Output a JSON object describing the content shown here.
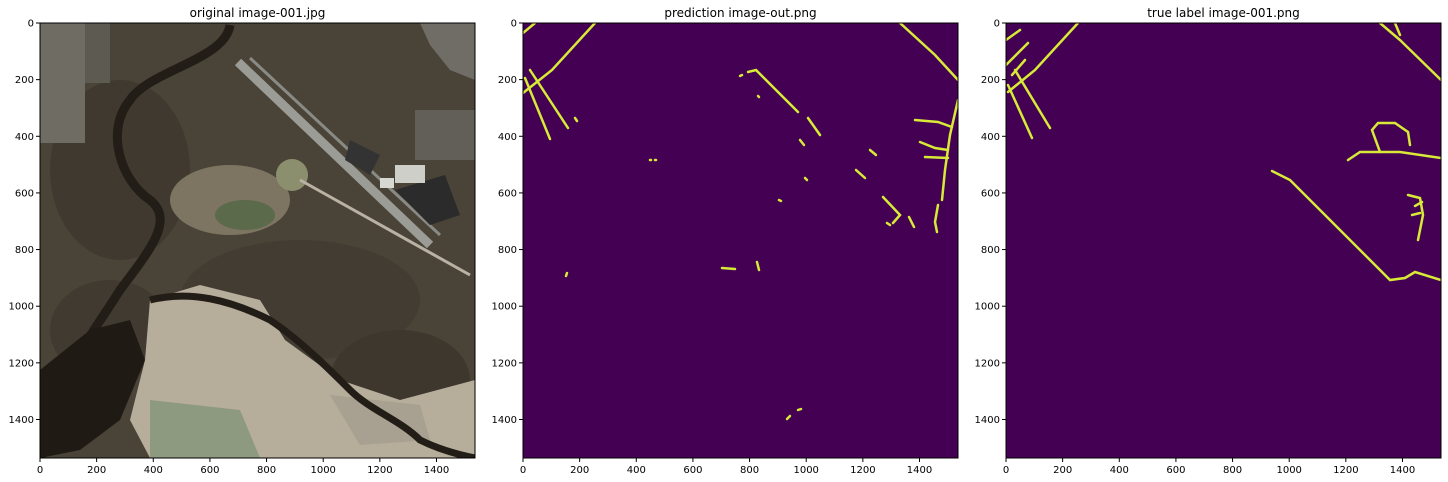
{
  "figure": {
    "panels": [
      {
        "title": "original image-001.jpg",
        "kind": "aerial-photo",
        "xticks": [
          "0",
          "200",
          "400",
          "600",
          "800",
          "1000",
          "1200",
          "1400"
        ],
        "yticks": [
          "0",
          "200",
          "400",
          "600",
          "800",
          "1000",
          "1200",
          "1400"
        ]
      },
      {
        "title": "prediction image-out.png",
        "kind": "road-mask",
        "xticks": [
          "0",
          "200",
          "400",
          "600",
          "800",
          "1000",
          "1200",
          "1400"
        ],
        "yticks": [
          "0",
          "200",
          "400",
          "600",
          "800",
          "1000",
          "1200",
          "1400"
        ]
      },
      {
        "title": "true label image-001.png",
        "kind": "road-mask",
        "xticks": [
          "0",
          "200",
          "400",
          "600",
          "800",
          "1000",
          "1200",
          "1400"
        ],
        "yticks": [
          "0",
          "200",
          "400",
          "600",
          "800",
          "1000",
          "1200",
          "1400"
        ]
      }
    ],
    "colors": {
      "mask_background": "#440154",
      "mask_road": "#d7ea37",
      "photo_forest": "#4a4338",
      "photo_sand": "#b7ad9b",
      "photo_water": "#221d16",
      "photo_runway": "#9c9c97"
    }
  },
  "chart_data": [
    {
      "type": "heatmap",
      "title": "original image-001.jpg",
      "xlim": [
        0,
        1536
      ],
      "ylim": [
        1536,
        0
      ],
      "xticks": [
        0,
        200,
        400,
        600,
        800,
        1000,
        1200,
        1400
      ],
      "yticks": [
        0,
        200,
        400,
        600,
        800,
        1000,
        1200,
        1400
      ]
    },
    {
      "type": "heatmap",
      "title": "prediction image-out.png",
      "xlim": [
        0,
        1536
      ],
      "ylim": [
        1536,
        0
      ],
      "xticks": [
        0,
        200,
        400,
        600,
        800,
        1000,
        1200,
        1400
      ],
      "yticks": [
        0,
        200,
        400,
        600,
        800,
        1000,
        1200,
        1400
      ],
      "colormap": "viridis",
      "value_range": [
        0,
        1
      ]
    },
    {
      "type": "heatmap",
      "title": "true label image-001.png",
      "xlim": [
        0,
        1536
      ],
      "ylim": [
        1536,
        0
      ],
      "xticks": [
        0,
        200,
        400,
        600,
        800,
        1000,
        1200,
        1400
      ],
      "yticks": [
        0,
        200,
        400,
        600,
        800,
        1000,
        1200,
        1400
      ],
      "colormap": "viridis",
      "value_range": [
        0,
        1
      ]
    }
  ]
}
